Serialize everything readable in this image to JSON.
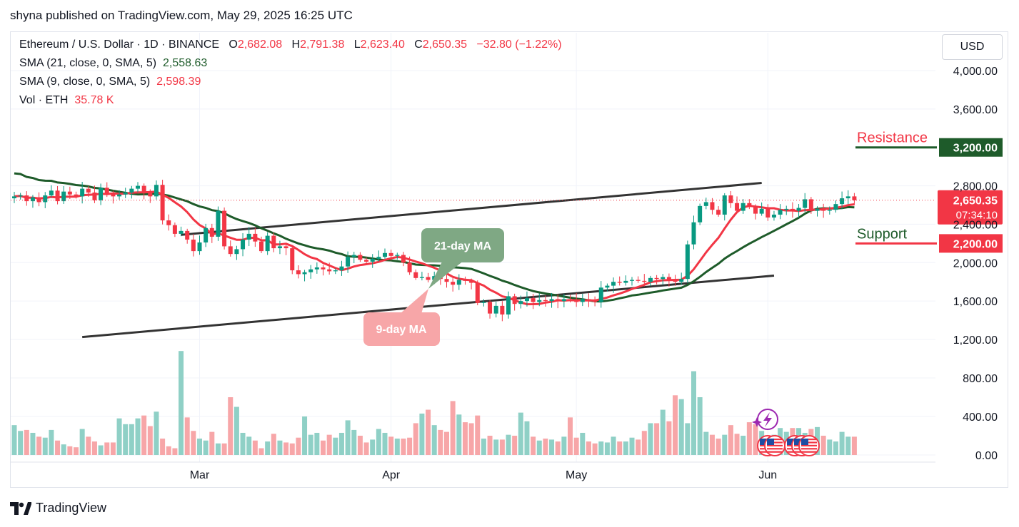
{
  "header": {
    "published": "shyna published on TradingView.com, May 29, 2025 16:25 UTC"
  },
  "legend": {
    "symbol": "Ethereum / U.S. Dollar · 1D · BINANCE",
    "o_label": "O",
    "o_value": "2,682.08",
    "h_label": "H",
    "h_value": "2,791.38",
    "l_label": "L",
    "l_value": "2,623.40",
    "c_label": "C",
    "c_value": "2,650.35",
    "change": "−32.80 (−1.22%)",
    "sma21_label": "SMA (21, close, 0, SMA, 5)",
    "sma21_value": "2,558.63",
    "sma9_label": "SMA (9, close, 0, SMA, 5)",
    "sma9_value": "2,598.39",
    "vol_label": "Vol · ETH",
    "vol_value": "35.78 K"
  },
  "currency": "USD",
  "footer": {
    "brand": "TradingView"
  },
  "colors": {
    "up": "#089981",
    "down": "#f23645",
    "up_vol": "#8fd0c6",
    "down_vol": "#f7a6a8",
    "sma9": "#f23645",
    "sma21": "#1e5b2a",
    "trend": "#333333",
    "grid": "#f0f3fa"
  },
  "chart_data": {
    "type": "candlestick",
    "price_axis": {
      "ticks": [
        4000,
        3600,
        2800,
        2400,
        2000,
        1600,
        1200
      ],
      "labels": [
        "4,000.00",
        "3,600.00",
        "2,800.00",
        "2,400.00",
        "2,000.00",
        "1,600.00",
        "1,200.00"
      ]
    },
    "volume_axis": {
      "ticks": [
        800,
        400,
        0
      ],
      "labels": [
        "800.00",
        "400.00",
        "0.00"
      ]
    },
    "x_axis": {
      "labels": [
        "Mar",
        "Apr",
        "May",
        "Jun"
      ],
      "label_dates": [
        "2025-03-01",
        "2025-04-01",
        "2025-05-01",
        "2025-06-01"
      ]
    },
    "first_date": "2025-01-30",
    "last_price": {
      "value": 2650.35,
      "label": "2,650.35",
      "countdown": "07:34:10"
    },
    "levels": [
      {
        "name": "Resistance",
        "value": 3200,
        "label": "3,200.00",
        "color": "#1e5b2a"
      },
      {
        "name": "Support",
        "value": 2200,
        "label": "2,200.00",
        "color": "#f23645"
      }
    ],
    "annotations": [
      {
        "text": "21-day MA",
        "color": "#7fa884",
        "date": "2025-04-07",
        "value": 1840
      },
      {
        "text": "9-day MA",
        "color": "#f7a6a8",
        "date": "2025-04-07",
        "value": 1460
      }
    ],
    "trendlines": [
      {
        "from": [
          "2025-02-26",
          2290
        ],
        "to": [
          "2025-05-31",
          2830
        ]
      },
      {
        "from": [
          "2025-02-10",
          1225
        ],
        "to": [
          "2025-06-02",
          1865
        ]
      }
    ],
    "closes": [
      2690,
      2700,
      2640,
      2680,
      2630,
      2700,
      2750,
      2640,
      2740,
      2710,
      2690,
      2770,
      2730,
      2650,
      2780,
      2720,
      2690,
      2710,
      2730,
      2770,
      2800,
      2730,
      2690,
      2810,
      2440,
      2390,
      2300,
      2330,
      2240,
      2120,
      2210,
      2360,
      2270,
      2540,
      2170,
      2090,
      2140,
      2240,
      2300,
      2220,
      2120,
      2280,
      2150,
      2170,
      2150,
      1920,
      1880,
      1900,
      1930,
      1950,
      1930,
      1910,
      1920,
      1960,
      2060,
      2080,
      2030,
      2010,
      2040,
      2060,
      2100,
      2070,
      2080,
      2000,
      1900,
      1840,
      1850,
      1820,
      1860,
      1830,
      1800,
      1770,
      1820,
      1810,
      1790,
      1580,
      1590,
      1470,
      1550,
      1460,
      1650,
      1570,
      1600,
      1630,
      1590,
      1610,
      1600,
      1620,
      1600,
      1620,
      1610,
      1590,
      1620,
      1600,
      1590,
      1740,
      1760,
      1800,
      1790,
      1810,
      1820,
      1810,
      1800,
      1840,
      1830,
      1850,
      1820,
      1800,
      1830,
      2190,
      2420,
      2590,
      2630,
      2550,
      2500,
      2700,
      2620,
      2540,
      2620,
      2580,
      2510,
      2560,
      2470,
      2500,
      2550,
      2560,
      2540,
      2570,
      2660,
      2540,
      2560,
      2540,
      2550,
      2610,
      2670,
      2690,
      2650
    ],
    "volumes": [
      310,
      250,
      260,
      230,
      190,
      180,
      260,
      150,
      110,
      90,
      80,
      270,
      190,
      140,
      100,
      130,
      130,
      380,
      320,
      320,
      380,
      410,
      300,
      450,
      170,
      90,
      70,
      1080,
      390,
      250,
      170,
      150,
      240,
      120,
      120,
      600,
      500,
      230,
      190,
      150,
      70,
      140,
      220,
      150,
      130,
      120,
      180,
      400,
      210,
      230,
      150,
      210,
      180,
      230,
      360,
      260,
      200,
      130,
      160,
      270,
      230,
      190,
      170,
      170,
      180,
      330,
      430,
      470,
      310,
      260,
      240,
      560,
      420,
      340,
      330,
      410,
      170,
      200,
      160,
      160,
      210,
      200,
      440,
      350,
      190,
      150,
      170,
      160,
      140,
      190,
      390,
      180,
      230,
      140,
      120,
      140,
      130,
      190,
      140,
      140,
      180,
      160,
      250,
      330,
      330,
      470,
      350,
      620,
      580,
      330,
      870,
      600,
      240,
      210,
      170,
      210,
      310,
      220,
      200,
      340,
      320,
      250,
      160,
      210,
      280,
      240,
      280,
      280,
      230,
      270,
      290,
      200,
      160,
      140,
      240,
      190,
      190
    ]
  }
}
